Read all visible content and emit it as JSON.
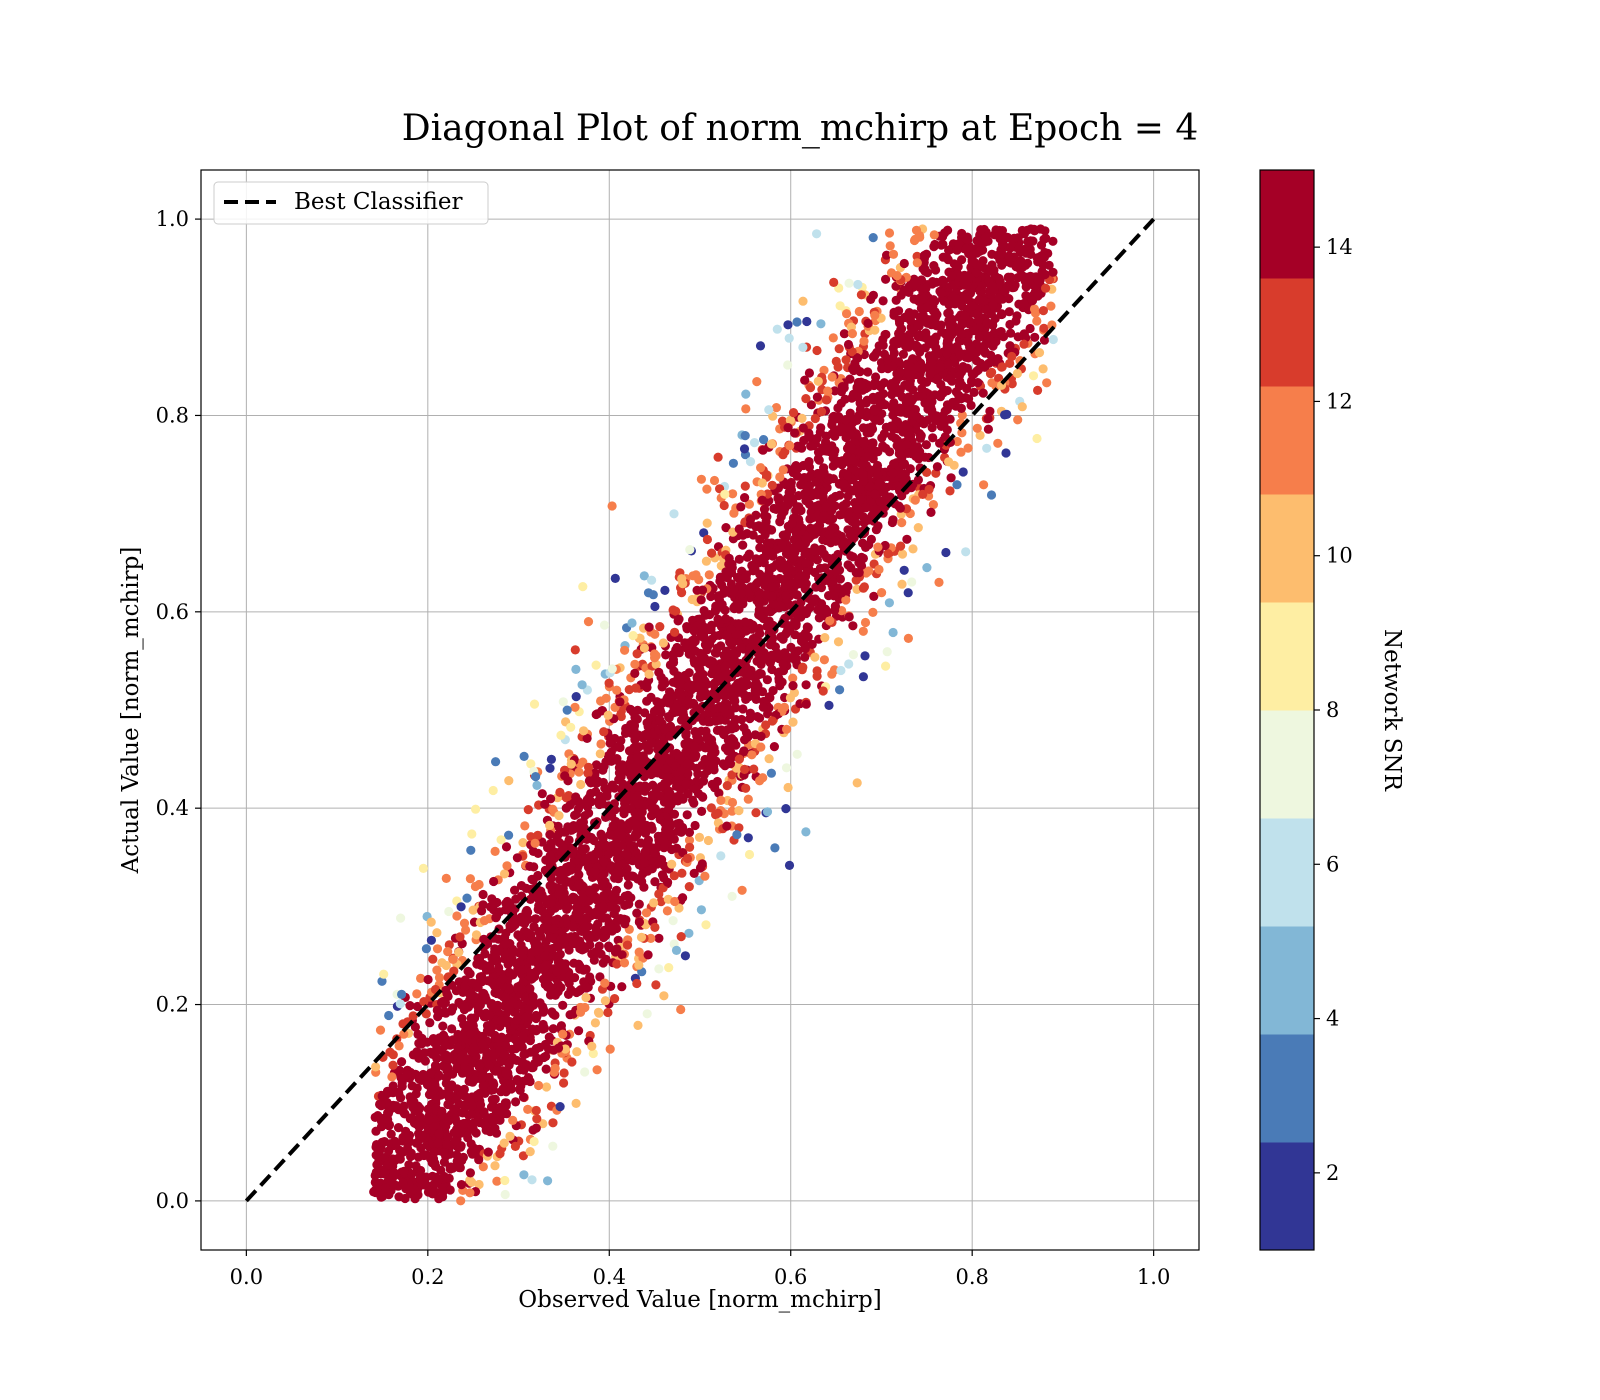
{
  "chart_data": {
    "type": "scatter",
    "title": "Diagonal Plot of norm_mchirp at Epoch = 4",
    "xlabel": "Observed Value [norm_mchirp]",
    "ylabel": "Actual Value [norm_mchirp]",
    "xlim": [
      -0.05,
      1.05
    ],
    "ylim": [
      -0.05,
      1.05
    ],
    "xticks": [
      "0.0",
      "0.2",
      "0.4",
      "0.6",
      "0.8",
      "1.0"
    ],
    "yticks": [
      "0.0",
      "0.2",
      "0.4",
      "0.6",
      "0.8",
      "1.0"
    ],
    "grid": true,
    "legend": {
      "placement": "top-left",
      "entries": [
        {
          "label": "Best Classifier",
          "style": "dashed",
          "color": "#000000"
        }
      ]
    },
    "reference_line": {
      "name": "Best Classifier",
      "x": [
        0.0,
        1.0
      ],
      "y": [
        0.0,
        1.0
      ]
    },
    "cloud": {
      "description_free": true,
      "point_count_estimate": 60000,
      "observed_range": [
        0.14,
        0.89
      ],
      "actual_range": [
        0.0,
        0.99
      ],
      "trend": {
        "x": [
          0.15,
          0.85
        ],
        "y": [
          0.0,
          1.0
        ]
      },
      "dominant_color_value": 15
    },
    "colorbar": {
      "label": "Network SNR",
      "range": [
        1,
        15
      ],
      "bins": 10,
      "ticks": [
        "2",
        "4",
        "6",
        "8",
        "10",
        "12",
        "14"
      ],
      "tick_values": [
        2,
        4,
        6,
        8,
        10,
        12,
        14
      ],
      "colors": [
        "#313695",
        "#4a7bb7",
        "#82b7d6",
        "#c0e1ec",
        "#eef7df",
        "#feeea3",
        "#fdbd6e",
        "#f67e4b",
        "#d83c2c",
        "#a50026"
      ]
    }
  }
}
